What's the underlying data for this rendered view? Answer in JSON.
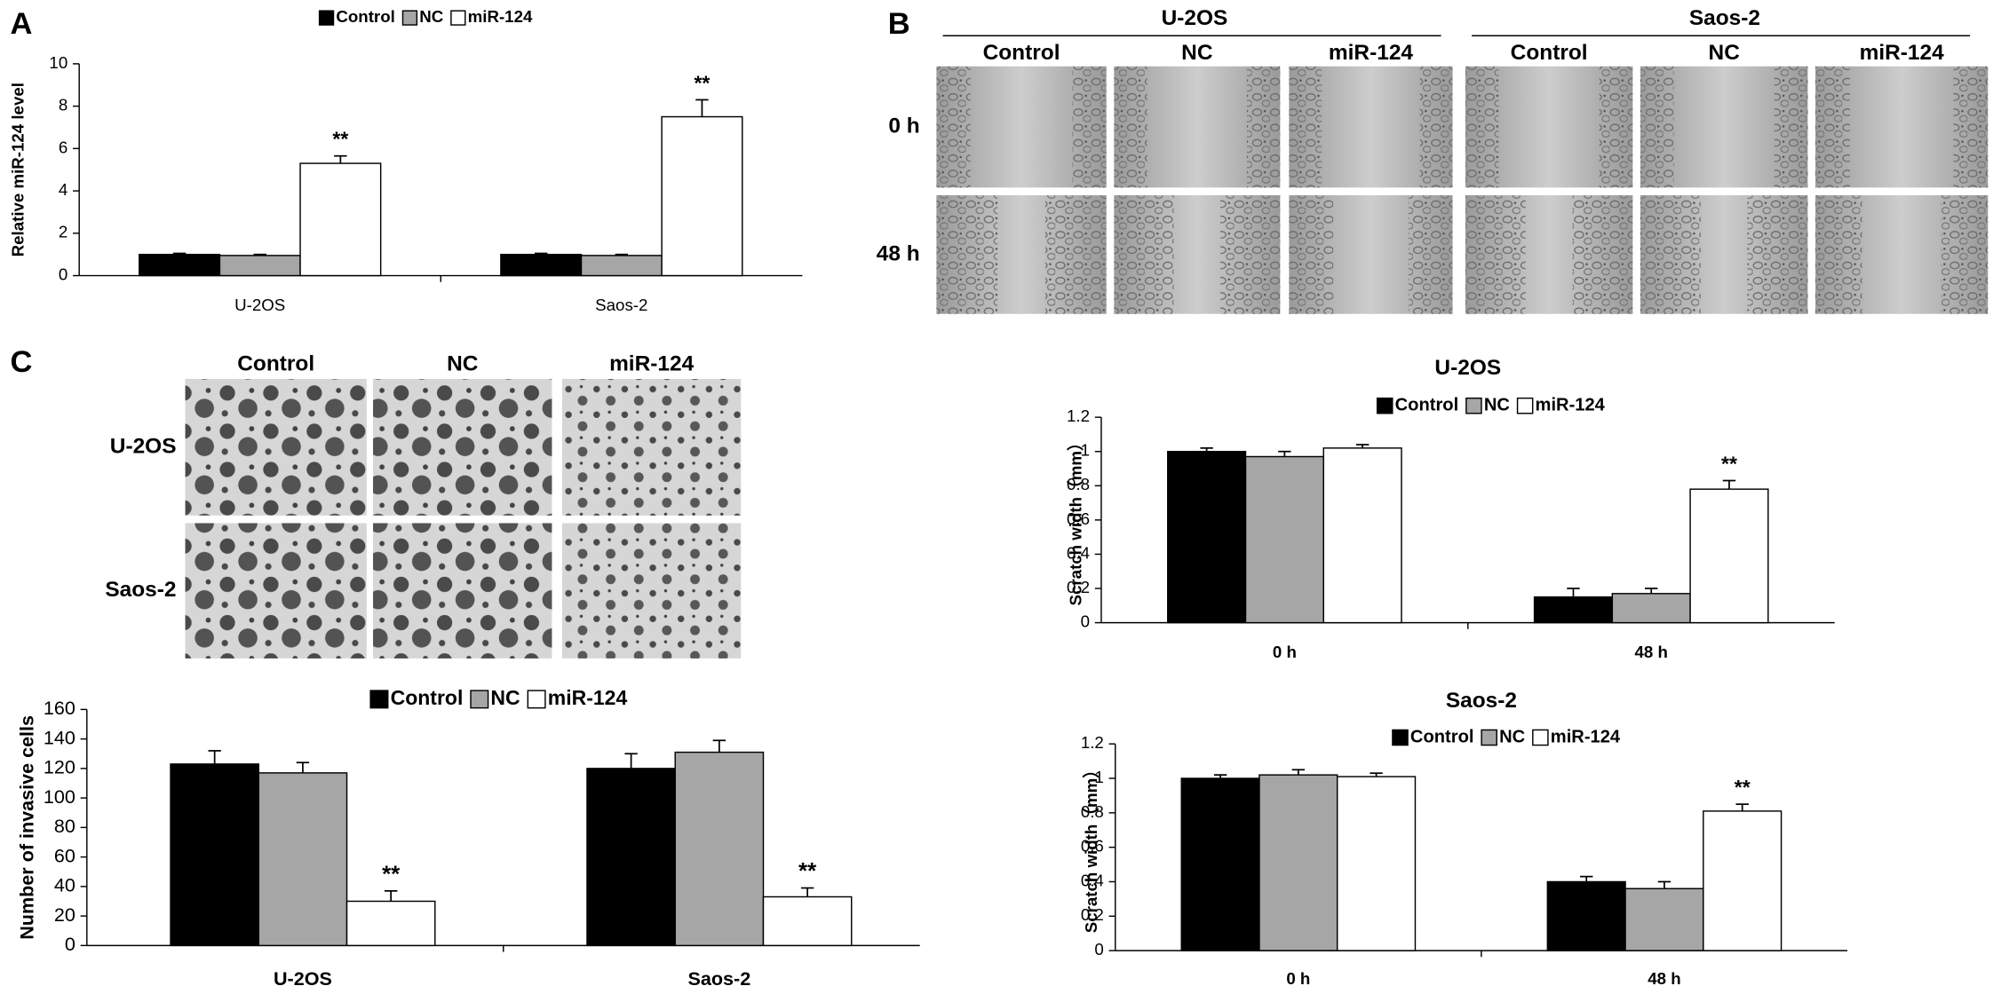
{
  "panel_labels": [
    "A",
    "B",
    "C"
  ],
  "scratch_assay": {
    "groups": [
      {
        "name": "U-2OS",
        "columns": [
          "Control",
          "NC",
          "miR-124"
        ]
      },
      {
        "name": "Saos-2",
        "columns": [
          "Control",
          "NC",
          "miR-124"
        ]
      }
    ],
    "rows": [
      "0 h",
      "48 h"
    ]
  },
  "invasion_assay": {
    "columns": [
      "Control",
      "NC",
      "miR-124"
    ],
    "rows": [
      "U-2OS",
      "Saos-2"
    ]
  },
  "chart_data": [
    {
      "type": "bar",
      "ylabel": "Relative miR-124 level",
      "categories": [
        "U-2OS",
        "Saos-2"
      ],
      "series": [
        {
          "name": "Control",
          "color": "#000000",
          "values": [
            1.0,
            1.0
          ],
          "errors": [
            0.05,
            0.05
          ]
        },
        {
          "name": "NC",
          "color": "#a6a6a6",
          "values": [
            0.95,
            0.95
          ],
          "errors": [
            0.05,
            0.05
          ]
        },
        {
          "name": "miR-124",
          "color": "#ffffff",
          "values": [
            5.3,
            7.5
          ],
          "errors": [
            0.35,
            0.8
          ],
          "significance": [
            "**",
            "**"
          ]
        }
      ],
      "ylim": [
        0,
        10
      ],
      "yticks": [
        0,
        2,
        4,
        6,
        8,
        10
      ],
      "legend": "top"
    },
    {
      "type": "bar",
      "title": "U-2OS",
      "ylabel": "Scratch width（mm）",
      "categories": [
        "0 h",
        "48 h"
      ],
      "series": [
        {
          "name": "Control",
          "color": "#000000",
          "values": [
            1.0,
            0.15
          ],
          "errors": [
            0.02,
            0.05
          ]
        },
        {
          "name": "NC",
          "color": "#a6a6a6",
          "values": [
            0.97,
            0.17
          ],
          "errors": [
            0.03,
            0.03
          ]
        },
        {
          "name": "miR-124",
          "color": "#ffffff",
          "values": [
            1.02,
            0.78
          ],
          "errors": [
            0.02,
            0.05
          ],
          "significance": [
            null,
            "**"
          ]
        }
      ],
      "ylim": [
        0,
        1.2
      ],
      "yticks": [
        0,
        0.2,
        0.4,
        0.6,
        0.8,
        1,
        1.2
      ],
      "legend": "top"
    },
    {
      "type": "bar",
      "title": "Saos-2",
      "ylabel": "Scratch width（mm）",
      "categories": [
        "0 h",
        "48 h"
      ],
      "series": [
        {
          "name": "Control",
          "color": "#000000",
          "values": [
            1.0,
            0.4
          ],
          "errors": [
            0.02,
            0.03
          ]
        },
        {
          "name": "NC",
          "color": "#a6a6a6",
          "values": [
            1.02,
            0.36
          ],
          "errors": [
            0.03,
            0.04
          ]
        },
        {
          "name": "miR-124",
          "color": "#ffffff",
          "values": [
            1.01,
            0.81
          ],
          "errors": [
            0.02,
            0.04
          ],
          "significance": [
            null,
            "**"
          ]
        }
      ],
      "ylim": [
        0,
        1.2
      ],
      "yticks": [
        0,
        0.2,
        0.4,
        0.6,
        0.8,
        1,
        1.2
      ],
      "legend": "top"
    },
    {
      "type": "bar",
      "ylabel": "Number of invasive cells",
      "categories": [
        "U-2OS",
        "Saos-2"
      ],
      "series": [
        {
          "name": "Control",
          "color": "#000000",
          "values": [
            123,
            120
          ],
          "errors": [
            9,
            10
          ]
        },
        {
          "name": "NC",
          "color": "#a6a6a6",
          "values": [
            117,
            131
          ],
          "errors": [
            7,
            8
          ]
        },
        {
          "name": "miR-124",
          "color": "#ffffff",
          "values": [
            30,
            33
          ],
          "errors": [
            7,
            6
          ],
          "significance": [
            "**",
            "**"
          ]
        }
      ],
      "ylim": [
        0,
        160
      ],
      "yticks": [
        0,
        20,
        40,
        60,
        80,
        100,
        120,
        140,
        160
      ],
      "legend": "top"
    }
  ]
}
